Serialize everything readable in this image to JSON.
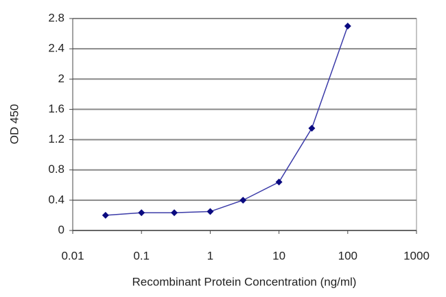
{
  "chart_data": {
    "type": "line",
    "x_label": "Recombinant Protein Concentration (ng/ml)",
    "y_label": "OD 450",
    "x": [
      0.03,
      0.1,
      0.3,
      1,
      3,
      10,
      30,
      100
    ],
    "values": [
      0.2,
      0.235,
      0.235,
      0.25,
      0.4,
      0.64,
      1.35,
      2.7
    ],
    "color": "#3a3aa8",
    "marker_color": "#0a0a80",
    "xscale": "log",
    "xlim": [
      0.01,
      1000
    ],
    "xticks": [
      0.01,
      0.1,
      1,
      10,
      100,
      1000
    ],
    "ylim": [
      0,
      2.8
    ],
    "yticks": [
      0,
      0.4,
      0.8,
      1.2,
      1.6,
      2,
      2.4,
      2.8
    ],
    "grid": true
  }
}
